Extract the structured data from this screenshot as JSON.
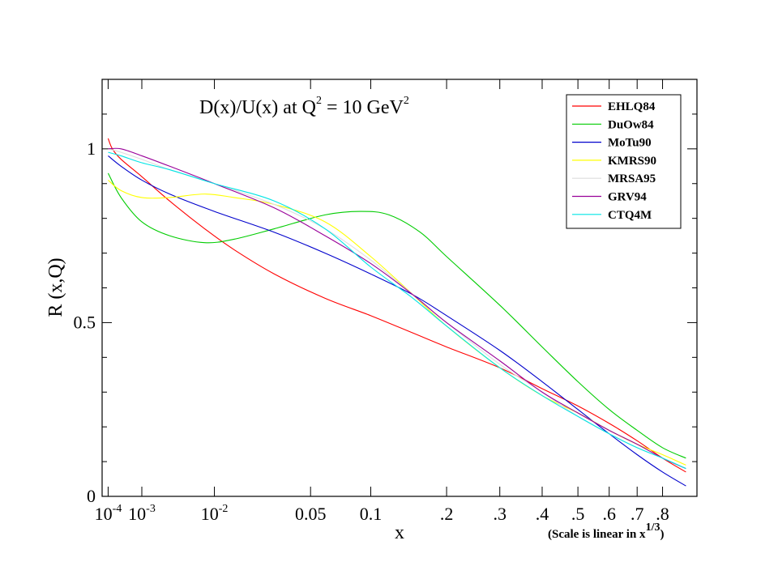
{
  "chart_data": {
    "type": "line",
    "title": {
      "main": "D(x)/U(x) at Q",
      "sup1": "2",
      "mid": " = 10 GeV",
      "sup2": "2"
    },
    "xlabel": "x",
    "ylabel": "R (x,Q)",
    "x_scale": "linear in x^(1/3)",
    "xlim": [
      5e-05,
      0.95
    ],
    "ylim": [
      0,
      1.2
    ],
    "grid": false,
    "legend_position": "top-right",
    "x_ticks": [
      {
        "value": 0.0001,
        "base": "10",
        "sup": "-4"
      },
      {
        "value": 0.001,
        "base": "10",
        "sup": "-3"
      },
      {
        "value": 0.01,
        "base": "10",
        "sup": "-2"
      },
      {
        "value": 0.05,
        "base": "0.05",
        "sup": ""
      },
      {
        "value": 0.1,
        "base": "0.1",
        "sup": ""
      },
      {
        "value": 0.2,
        "base": ".2",
        "sup": ""
      },
      {
        "value": 0.3,
        "base": ".3",
        "sup": ""
      },
      {
        "value": 0.4,
        "base": ".4",
        "sup": ""
      },
      {
        "value": 0.5,
        "base": ".5",
        "sup": ""
      },
      {
        "value": 0.6,
        "base": ".6",
        "sup": ""
      },
      {
        "value": 0.7,
        "base": ".7",
        "sup": ""
      },
      {
        "value": 0.8,
        "base": ".8",
        "sup": ""
      }
    ],
    "y_ticks": [
      {
        "value": 0,
        "label": "0"
      },
      {
        "value": 0.5,
        "label": "0.5"
      },
      {
        "value": 1,
        "label": "1"
      }
    ],
    "y_minor_ticks": [
      0.1,
      0.2,
      0.3,
      0.4,
      0.6,
      0.7,
      0.8,
      0.9,
      1.1
    ],
    "note": {
      "text": "(Scale is linear in x",
      "sup": "1/3",
      "close": ")"
    },
    "series": [
      {
        "name": "EHLQ84",
        "color": "#ff0000",
        "x": [
          0.0001,
          0.00015,
          0.0003,
          0.001,
          0.003,
          0.008,
          0.015,
          0.03,
          0.06,
          0.1,
          0.15,
          0.2,
          0.3,
          0.4,
          0.5,
          0.6,
          0.7,
          0.8,
          0.9
        ],
        "y": [
          1.03,
          1.0,
          0.97,
          0.92,
          0.85,
          0.77,
          0.71,
          0.64,
          0.57,
          0.52,
          0.47,
          0.43,
          0.37,
          0.31,
          0.26,
          0.21,
          0.16,
          0.11,
          0.07
        ]
      },
      {
        "name": "DuOw84",
        "color": "#00cc00",
        "x": [
          0.0001,
          0.0003,
          0.001,
          0.003,
          0.008,
          0.015,
          0.03,
          0.06,
          0.09,
          0.12,
          0.16,
          0.2,
          0.3,
          0.4,
          0.5,
          0.6,
          0.7,
          0.8,
          0.9
        ],
        "y": [
          0.93,
          0.86,
          0.79,
          0.75,
          0.73,
          0.74,
          0.77,
          0.81,
          0.82,
          0.81,
          0.76,
          0.69,
          0.55,
          0.43,
          0.33,
          0.25,
          0.19,
          0.14,
          0.11
        ]
      },
      {
        "name": "MoTu90",
        "color": "#0000cc",
        "x": [
          0.0001,
          0.0003,
          0.001,
          0.003,
          0.01,
          0.03,
          0.06,
          0.1,
          0.15,
          0.2,
          0.3,
          0.4,
          0.5,
          0.6,
          0.7,
          0.8,
          0.9
        ],
        "y": [
          0.98,
          0.95,
          0.91,
          0.87,
          0.82,
          0.76,
          0.7,
          0.64,
          0.58,
          0.52,
          0.42,
          0.33,
          0.25,
          0.18,
          0.12,
          0.07,
          0.03
        ]
      },
      {
        "name": "KMRS90",
        "color": "#ffff00",
        "x": [
          0.0001,
          0.0003,
          0.001,
          0.003,
          0.008,
          0.015,
          0.03,
          0.06,
          0.1,
          0.15,
          0.2,
          0.3,
          0.4,
          0.5,
          0.6,
          0.7,
          0.8,
          0.9
        ],
        "y": [
          0.91,
          0.88,
          0.86,
          0.86,
          0.87,
          0.86,
          0.84,
          0.79,
          0.69,
          0.58,
          0.49,
          0.37,
          0.29,
          0.24,
          0.19,
          0.15,
          0.12,
          0.09
        ]
      },
      {
        "name": "MRSA95",
        "color": "#dddddd",
        "x": [
          0.0001,
          0.0003,
          0.001,
          0.003,
          0.01,
          0.03,
          0.06,
          0.1,
          0.15,
          0.2,
          0.3,
          0.4,
          0.5,
          0.6,
          0.7,
          0.8,
          0.9
        ],
        "y": [
          1.0,
          0.99,
          0.97,
          0.94,
          0.9,
          0.84,
          0.77,
          0.68,
          0.58,
          0.5,
          0.38,
          0.3,
          0.23,
          0.18,
          0.14,
          0.11,
          0.08
        ]
      },
      {
        "name": "GRV94",
        "color": "#990099",
        "x": [
          0.0001,
          0.0003,
          0.001,
          0.003,
          0.01,
          0.03,
          0.06,
          0.1,
          0.15,
          0.2,
          0.3,
          0.4,
          0.5,
          0.6,
          0.7,
          0.8,
          0.9
        ],
        "y": [
          1.0,
          1.0,
          0.98,
          0.95,
          0.9,
          0.83,
          0.75,
          0.67,
          0.58,
          0.5,
          0.39,
          0.3,
          0.24,
          0.19,
          0.15,
          0.11,
          0.08
        ]
      },
      {
        "name": "CTQ4M",
        "color": "#00e5e5",
        "x": [
          0.0001,
          0.0003,
          0.001,
          0.003,
          0.01,
          0.03,
          0.06,
          0.1,
          0.15,
          0.2,
          0.3,
          0.4,
          0.5,
          0.6,
          0.7,
          0.8,
          0.9
        ],
        "y": [
          0.99,
          0.98,
          0.96,
          0.94,
          0.9,
          0.85,
          0.77,
          0.66,
          0.57,
          0.49,
          0.37,
          0.29,
          0.23,
          0.18,
          0.14,
          0.11,
          0.08
        ]
      }
    ]
  }
}
